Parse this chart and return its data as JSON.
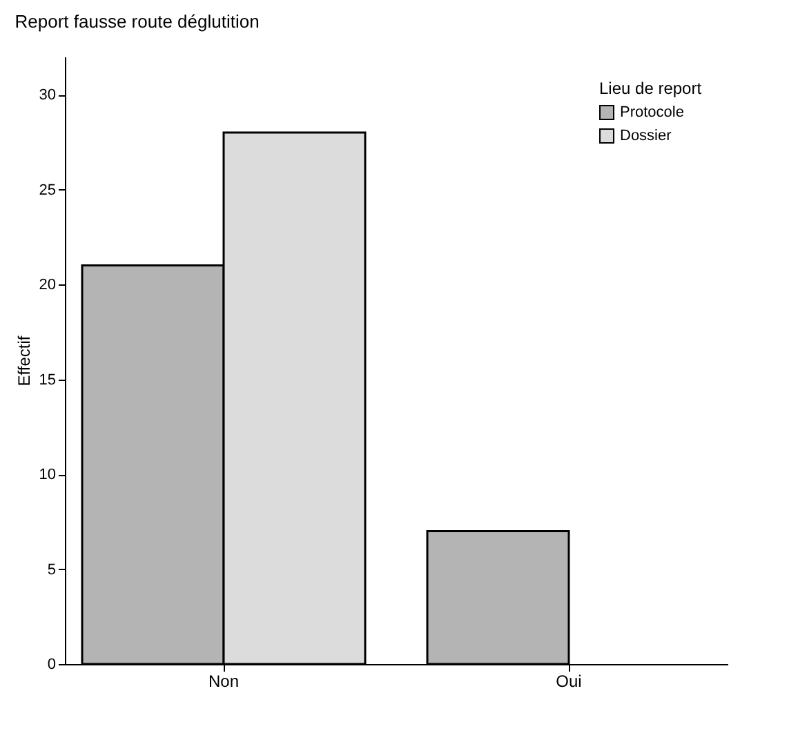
{
  "chart_data": {
    "type": "bar",
    "title": "Report fausse route déglutition",
    "ylabel": "Effectif",
    "legend_title": "Lieu de report",
    "categories": [
      "Non",
      "Oui"
    ],
    "series": [
      {
        "name": "Protocole",
        "color": "#b4b4b4",
        "values": [
          21,
          7
        ]
      },
      {
        "name": "Dossier",
        "color": "#dcdcdc",
        "values": [
          28,
          null
        ]
      }
    ],
    "ylim": [
      0,
      32
    ],
    "yticks": [
      0,
      5,
      10,
      15,
      20,
      25,
      30
    ],
    "grid": false,
    "legend": "top right"
  }
}
